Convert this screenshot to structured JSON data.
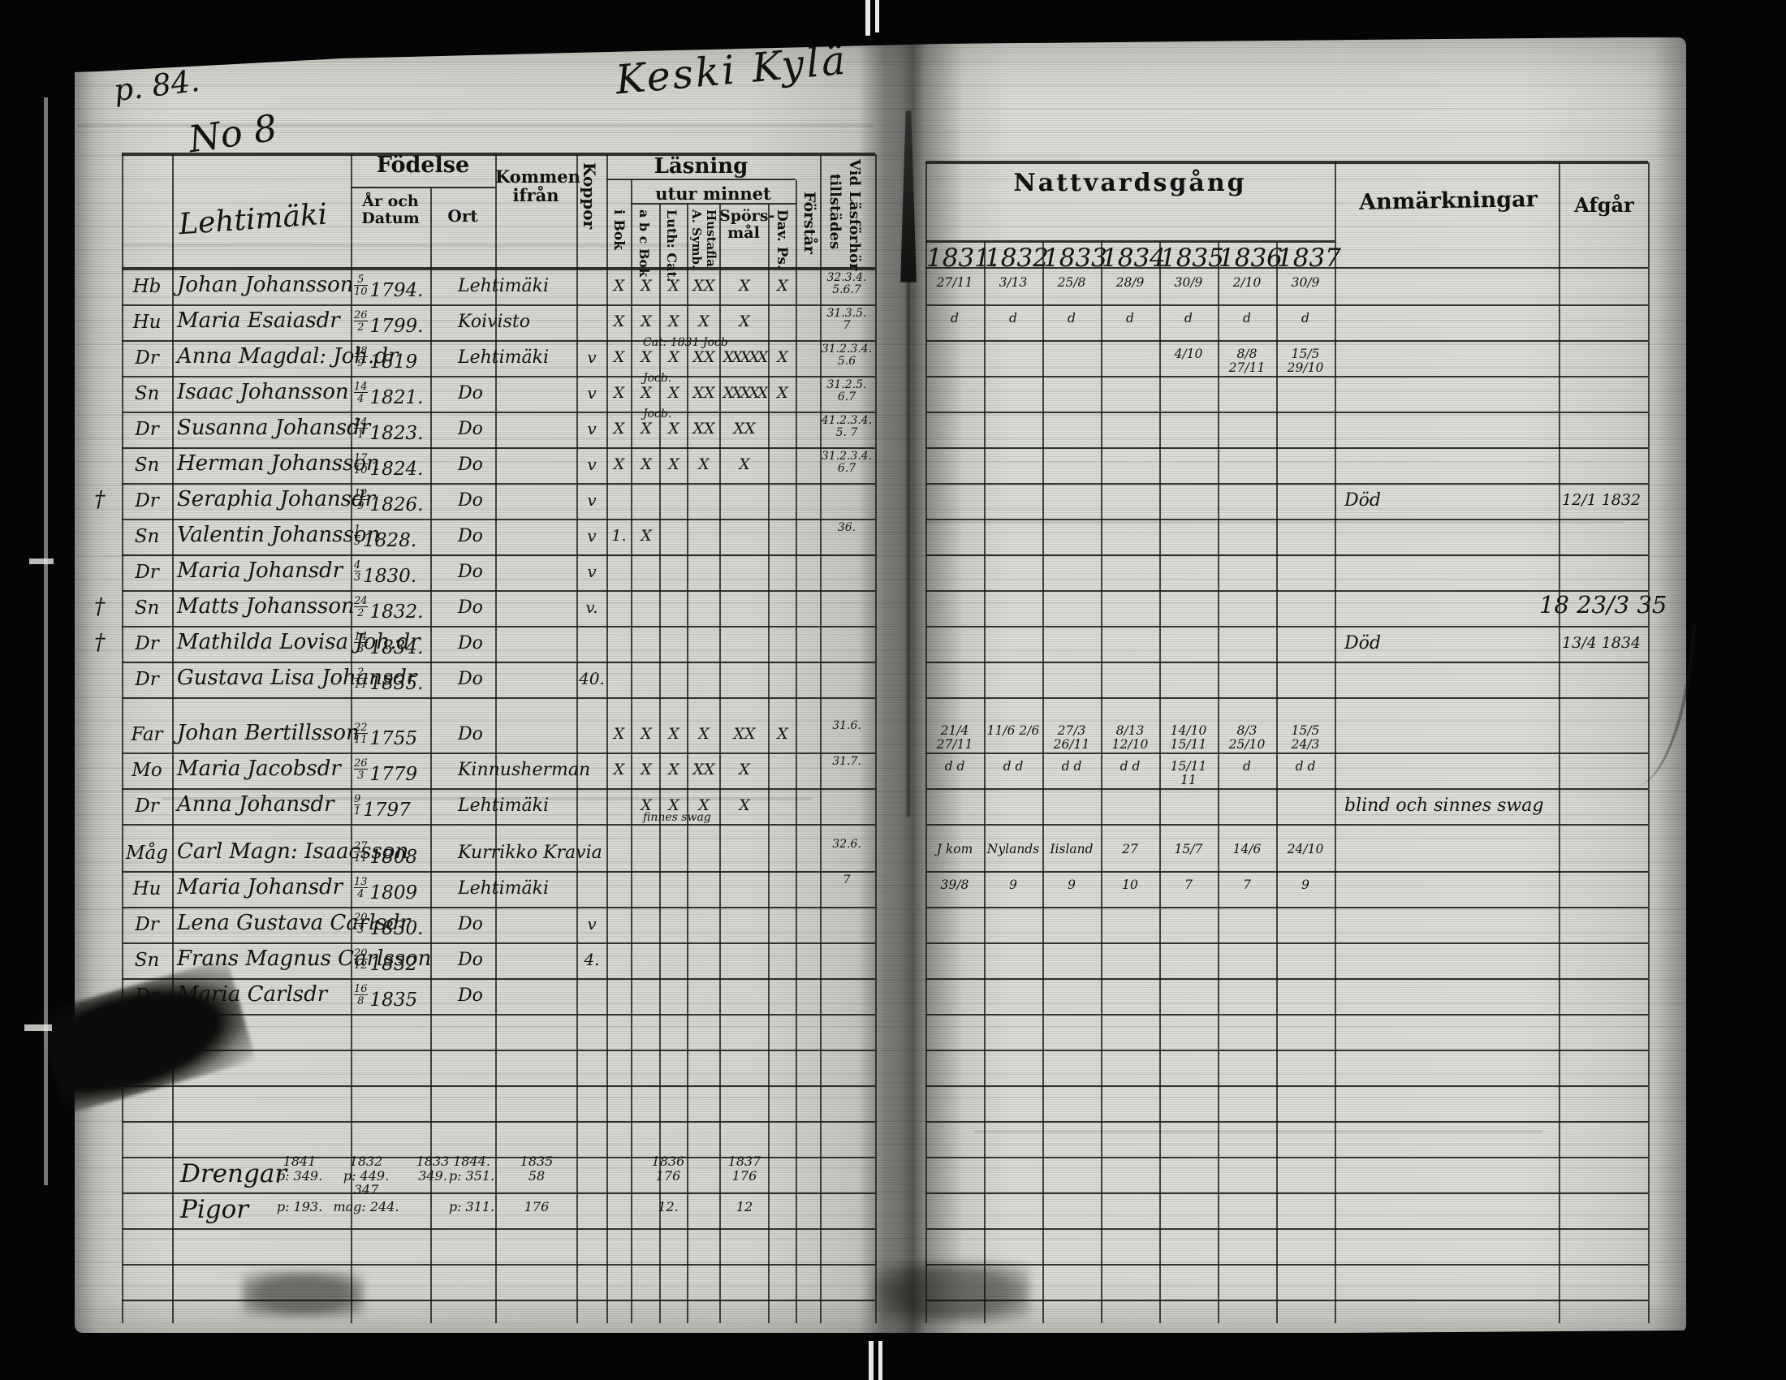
{
  "page": {
    "number": "p. 84.",
    "title": "Keski Kylä"
  },
  "left_table": {
    "group_no": "No 8",
    "household": "Lehtimäki",
    "headers": {
      "fodelse": "Födelse",
      "ar_och_datum": "År och\nDatum",
      "ort": "Ort",
      "kommen_ifran": "Kommen\nifrån",
      "koppor": "Koppor",
      "lasning": "Läsning",
      "utur_minnet": "utur minnet",
      "i_bok": "i Bok",
      "abc_bok": "a b c Bok",
      "luth_cat": "Luth: Cat.",
      "symb": "A. Symb.",
      "hustafla": "Hustafla",
      "sporsmal": "Spörs-\nmål",
      "dav_ps": "Dav. Ps.",
      "forstar": "Förstår",
      "vid_lasforhor": "Vid Läsförhör",
      "tillstades": "tillstädes"
    }
  },
  "right_table": {
    "title": "Nattvardsgång",
    "years": [
      "1831.",
      "1832",
      "1833",
      "1834",
      "1835",
      "1836",
      "1837"
    ],
    "anmarkningar": "Anmärkningar",
    "afgar": "Afgår"
  },
  "rows": [
    {
      "role": "Hb",
      "cross": "",
      "name": "Johan Johansson",
      "dm": "5/10",
      "yr": "1794.",
      "ort": "Lehtimäki",
      "koppor": "",
      "marks": [
        "X",
        "X",
        "X",
        "XX",
        "X",
        "X",
        ""
      ],
      "note": "",
      "note_pos": "",
      "vid": "32.3.4.\n5.6.7",
      "comm": [
        "27/11",
        "3/13",
        "25/8",
        "28/9",
        "30/9",
        "2/10",
        "30/9"
      ],
      "anm": "",
      "afgar": ""
    },
    {
      "role": "Hu",
      "cross": "",
      "name": "Maria Esaiasdr",
      "dm": "26/2",
      "yr": "1799.",
      "ort": "Koivisto",
      "koppor": "",
      "marks": [
        "X",
        "X",
        "X",
        "X",
        "X",
        "",
        ""
      ],
      "note": "",
      "note_pos": "",
      "vid": "31.3.5.\n7",
      "comm": [
        "d",
        "d",
        "d",
        "d",
        "d",
        "d",
        "d"
      ],
      "anm": "",
      "afgar": ""
    },
    {
      "role": "Dr",
      "cross": "",
      "name": "Anna Magdal: Joh.dr",
      "dm": "18/9",
      "yr": "1819",
      "ort": "Lehtimäki",
      "koppor": "v",
      "marks": [
        "X",
        "X",
        "X",
        "XX",
        "XXXXX",
        "X",
        ""
      ],
      "note": "Cat: 1831   Jocb",
      "note_pos": "above",
      "vid": "31.2.3.4.\n5.6",
      "comm": [
        "",
        "",
        "",
        "",
        "4/10",
        "8/8 27/11",
        "15/5 29/10"
      ],
      "anm": "",
      "afgar": ""
    },
    {
      "role": "Sn",
      "cross": "",
      "name": "Isaac Johansson",
      "dm": "14/4",
      "yr": "1821.",
      "ort": "Do",
      "koppor": "v",
      "marks": [
        "X",
        "X",
        "X",
        "XX",
        "XXXXX",
        "X",
        ""
      ],
      "note": "Jocb.",
      "note_pos": "above",
      "vid": "31.2.5.\n6.7",
      "comm": [
        "",
        "",
        "",
        "",
        "",
        "",
        ""
      ],
      "anm": "",
      "afgar": ""
    },
    {
      "role": "Dr",
      "cross": "",
      "name": "Susanna Johansdr",
      "dm": "24/1",
      "yr": "1823.",
      "ort": "Do",
      "koppor": "v",
      "marks": [
        "X",
        "X",
        "X",
        "XX",
        "XX",
        "",
        ""
      ],
      "note": "Jocb.",
      "note_pos": "above",
      "vid": "41.2.3.4.\n5. 7",
      "comm": [
        "",
        "",
        "",
        "",
        "",
        "",
        ""
      ],
      "anm": "",
      "afgar": ""
    },
    {
      "role": "Sn",
      "cross": "",
      "name": "Herman Johansson",
      "dm": "17/10",
      "yr": "1824.",
      "ort": "Do",
      "koppor": "v",
      "marks": [
        "X",
        "X",
        "X",
        "X",
        "X",
        "",
        ""
      ],
      "note": "",
      "note_pos": "",
      "vid": "31.2.3.4.\n6.7",
      "comm": [
        "",
        "",
        "",
        "",
        "",
        "",
        ""
      ],
      "anm": "",
      "afgar": ""
    },
    {
      "role": "Dr",
      "cross": "†",
      "name": "Seraphia Johansdr",
      "dm": "12/9",
      "yr": "1826.",
      "ort": "Do",
      "koppor": "v",
      "marks": [
        "",
        "",
        "",
        "",
        "",
        "",
        ""
      ],
      "note": "",
      "note_pos": "",
      "vid": "",
      "comm": [
        "",
        "",
        "",
        "",
        "",
        "",
        ""
      ],
      "anm": "Död",
      "afgar": "12/1 1832"
    },
    {
      "role": "Sn",
      "cross": "",
      "name": "Valentin Johansson",
      "dm": "1/5",
      "yr": "1828.",
      "ort": "Do",
      "koppor": "v",
      "marks": [
        "1.",
        "X",
        "",
        "",
        "",
        "",
        ""
      ],
      "note": "",
      "note_pos": "",
      "vid": "36.",
      "comm": [
        "",
        "",
        "",
        "",
        "",
        "",
        ""
      ],
      "anm": "",
      "afgar": ""
    },
    {
      "role": "Dr",
      "cross": "",
      "name": "Maria Johansdr",
      "dm": "4/3",
      "yr": "1830.",
      "ort": "Do",
      "koppor": "v",
      "marks": [
        "",
        "",
        "",
        "",
        "",
        "",
        ""
      ],
      "note": "",
      "note_pos": "",
      "vid": "",
      "comm": [
        "",
        "",
        "",
        "",
        "",
        "",
        ""
      ],
      "anm": "",
      "afgar": ""
    },
    {
      "role": "Sn",
      "cross": "†",
      "name": "Matts Johansson",
      "dm": "24/2",
      "yr": "1832.",
      "ort": "Do",
      "koppor": "v.",
      "marks": [
        "",
        "",
        "",
        "",
        "",
        "",
        ""
      ],
      "note": "",
      "note_pos": "",
      "vid": "",
      "comm": [
        "",
        "",
        "",
        "",
        "",
        "",
        ""
      ],
      "anm": "",
      "afgar": "18 23/3 35",
      "afgar_big": true
    },
    {
      "role": "Dr",
      "cross": "†",
      "name": "Mathilda Lovisa Joh.dr",
      "dm": "14/3",
      "yr": "1834.",
      "ort": "Do",
      "koppor": "",
      "marks": [
        "",
        "",
        "",
        "",
        "",
        "",
        ""
      ],
      "note": "",
      "note_pos": "",
      "vid": "",
      "comm": [
        "",
        "",
        "",
        "",
        "",
        "",
        ""
      ],
      "anm": "Död",
      "afgar": "13/4 1834"
    },
    {
      "role": "Dr",
      "cross": "",
      "name": "Gustava Lisa Johansdr",
      "dm": "2/11",
      "yr": "1835.",
      "ort": "Do",
      "koppor": "40.",
      "marks": [
        "",
        "",
        "",
        "",
        "",
        "",
        ""
      ],
      "note": "",
      "note_pos": "",
      "vid": "",
      "comm": [
        "",
        "",
        "",
        "",
        "",
        "",
        ""
      ],
      "anm": "",
      "afgar": ""
    },
    {
      "role": "Far",
      "cross": "",
      "name": "Johan Bertillsson",
      "dm": "22/11",
      "yr": "1755",
      "ort": "Do",
      "koppor": "",
      "marks": [
        "X",
        "X",
        "X",
        "X",
        "XX",
        "X",
        ""
      ],
      "note": "",
      "note_pos": "",
      "vid": "31.6.",
      "comm": [
        "21/4 27/11",
        "11/6 2/6",
        "27/3 26/11",
        "8/13 12/10",
        "14/10 15/11",
        "8/3 25/10",
        "15/5 24/3"
      ],
      "anm": "",
      "afgar": ""
    },
    {
      "role": "Mo",
      "cross": "",
      "name": "Maria Jacobsdr",
      "dm": "26/3",
      "yr": "1779",
      "ort": "Kinnusherman",
      "koppor": "",
      "marks": [
        "X",
        "X",
        "X",
        "XX",
        "X",
        "",
        ""
      ],
      "note": "",
      "note_pos": "",
      "vid": "31.7.",
      "comm": [
        "d d",
        "d d",
        "d d",
        "d d",
        "15/11 11",
        "d",
        "d d"
      ],
      "anm": "",
      "afgar": ""
    },
    {
      "role": "Dr",
      "cross": "",
      "name": "Anna Johansdr",
      "dm": "9/1",
      "yr": "1797",
      "ort": "Lehtimäki",
      "koppor": "",
      "marks": [
        "",
        "X",
        "X",
        "X",
        "X",
        "",
        ""
      ],
      "note": "finnes swag",
      "note_pos": "below",
      "vid": "",
      "comm": [
        "",
        "",
        "",
        "",
        "",
        "",
        ""
      ],
      "anm": "blind och sinnes swag",
      "afgar": ""
    },
    {
      "role": "Måg",
      "cross": "",
      "name": "Carl Magn: Isaacsson",
      "dm": "27/11",
      "yr": "1808",
      "ort": "Kurrikko Kravia",
      "koppor": "",
      "marks": [
        "",
        "",
        "",
        "",
        "",
        "",
        ""
      ],
      "note": "",
      "note_pos": "",
      "vid": "32.6.",
      "comm": [
        "J kom",
        "Nylands",
        "Iisland",
        "27",
        "15/7",
        "14/6",
        "24/10"
      ],
      "anm": "",
      "afgar": ""
    },
    {
      "role": "Hu",
      "cross": "",
      "name": "Maria Johansdr",
      "dm": "13/4",
      "yr": "1809",
      "ort": "Lehtimäki",
      "koppor": "",
      "marks": [
        "",
        "",
        "",
        "",
        "",
        "",
        ""
      ],
      "note": "",
      "note_pos": "",
      "vid": "7",
      "comm": [
        "39/8",
        "9",
        "9",
        "10",
        "7",
        "7",
        "9"
      ],
      "anm": "",
      "afgar": ""
    },
    {
      "role": "Dr",
      "cross": "",
      "name": "Lena Gustava Carlsdr",
      "dm": "20/3",
      "yr": "1830.",
      "ort": "Do",
      "koppor": "v",
      "marks": [
        "",
        "",
        "",
        "",
        "",
        "",
        ""
      ],
      "note": "",
      "note_pos": "",
      "vid": "",
      "comm": [
        "",
        "",
        "",
        "",
        "",
        "",
        ""
      ],
      "anm": "",
      "afgar": ""
    },
    {
      "role": "Sn",
      "cross": "",
      "name": "Frans Magnus Carlsson",
      "dm": "20/12",
      "yr": "1832",
      "ort": "Do",
      "koppor": "4.",
      "marks": [
        "",
        "",
        "",
        "",
        "",
        "",
        ""
      ],
      "note": "",
      "note_pos": "",
      "vid": "",
      "comm": [
        "",
        "",
        "",
        "",
        "",
        "",
        ""
      ],
      "anm": "",
      "afgar": ""
    },
    {
      "role": "Dr",
      "cross": "",
      "name": "Maria Carlsdr",
      "dm": "16/8",
      "yr": "1835",
      "ort": "Do",
      "koppor": "",
      "marks": [
        "",
        "",
        "",
        "",
        "",
        "",
        ""
      ],
      "note": "",
      "note_pos": "",
      "vid": "",
      "comm": [
        "",
        "",
        "",
        "",
        "",
        "",
        ""
      ],
      "anm": "",
      "afgar": ""
    }
  ],
  "summary": [
    {
      "label": "Drengar",
      "cells": [
        "1841\np: 349.",
        "1832\np: 449. 347",
        "1833\n349.",
        "1844.\np: 351.",
        "1835\n58",
        "1836\n176",
        "1837\n176"
      ]
    },
    {
      "label": "Pigor",
      "cells": [
        "p: 193.",
        "mag: 244.",
        "",
        "p: 311.",
        "176",
        "12.",
        "12"
      ]
    }
  ]
}
